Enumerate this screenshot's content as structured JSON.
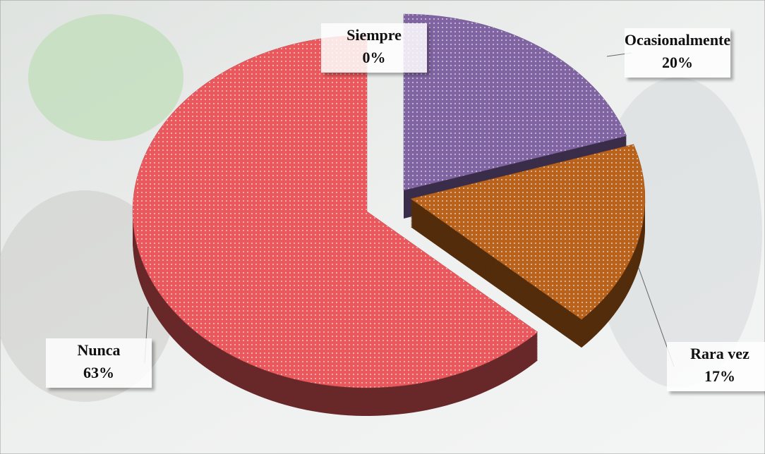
{
  "chart_data": {
    "type": "pie",
    "categories": [
      "Siempre",
      "Ocasionalmente",
      "Rara vez",
      "Nunca"
    ],
    "values": [
      0,
      20,
      17,
      63
    ],
    "value_labels": [
      "0%",
      "20%",
      "17%",
      "63%"
    ],
    "colors": [
      "#9bbb59",
      "#8064a2",
      "#b8621b",
      "#e8585c"
    ]
  }
}
